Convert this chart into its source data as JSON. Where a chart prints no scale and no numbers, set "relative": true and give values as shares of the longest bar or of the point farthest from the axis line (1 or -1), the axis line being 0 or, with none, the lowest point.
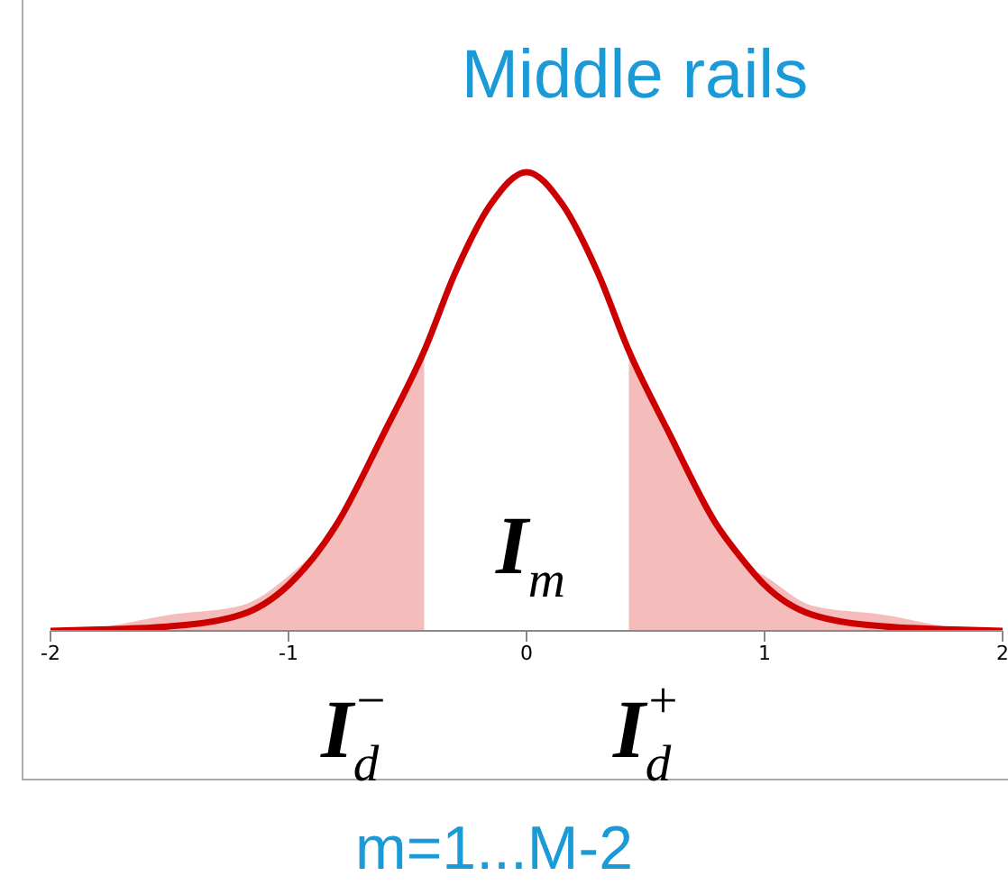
{
  "chart_data": {
    "type": "line",
    "title": "Middle rails",
    "relative": true,
    "x": [
      -2,
      -1.8,
      -1.5,
      -1.2,
      -1,
      -0.8,
      -0.6,
      -0.43,
      -0.3,
      -0.15,
      0,
      0.15,
      0.3,
      0.43,
      0.6,
      0.8,
      0.9,
      1,
      1.2,
      1.5,
      1.8,
      2
    ],
    "series": [
      {
        "type": "area",
        "color": "#f4b8b8",
        "values": [
          0,
          0.007,
          0.035,
          0.055,
          0.12,
          0.23,
          0.43,
          0.61,
          null,
          null,
          null,
          null,
          null,
          0.61,
          0.43,
          0.23,
          0.15,
          0.12,
          0.055,
          0.035,
          0.007,
          0
        ]
      },
      {
        "color": "#cc0000",
        "values": [
          0,
          0.003,
          0.01,
          0.035,
          0.1,
          0.23,
          0.43,
          0.61,
          0.78,
          0.93,
          1,
          0.93,
          0.78,
          0.61,
          0.43,
          0.23,
          0.16,
          0.1,
          0.035,
          0.01,
          0.003,
          0
        ]
      }
    ],
    "xlim": [
      -2,
      2
    ],
    "xticks": [
      -2,
      -1,
      0,
      1,
      2
    ],
    "grid": false,
    "legend": false,
    "marker": "none",
    "line_style": "solid",
    "annotations": [
      "I$_{m}$",
      "I$_{d}$$^{−}$",
      "I$_{d}$$^{+}$",
      "m=1...M-2"
    ]
  }
}
